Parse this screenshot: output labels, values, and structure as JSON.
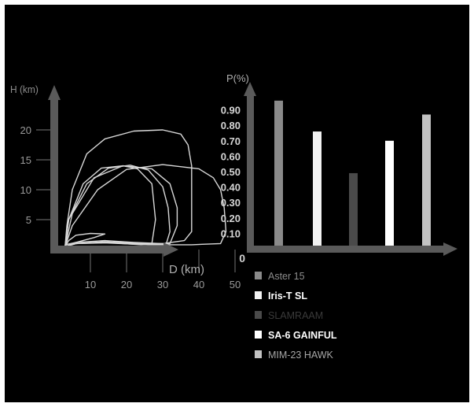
{
  "chart_data": [
    {
      "type": "line",
      "title": "",
      "ylabel": "H (km)",
      "xlabel": "D (km)",
      "x_ticks": [
        10,
        20,
        30,
        40,
        50
      ],
      "y_ticks": [
        5,
        10,
        15,
        20
      ],
      "xlim": [
        0,
        60
      ],
      "ylim": [
        0,
        25
      ],
      "series": [
        {
          "x": [
            3,
            3.5,
            5,
            9,
            14,
            22,
            30,
            35,
            37,
            38,
            38,
            36,
            30,
            22,
            14,
            6,
            3,
            3
          ],
          "y": [
            0.5,
            4,
            10,
            16,
            18.5,
            19.8,
            20,
            19.3,
            17.5,
            14,
            3,
            1.5,
            1,
            1.2,
            1.5,
            1.2,
            0.8,
            0.5
          ]
        },
        {
          "x": [
            3,
            4,
            8,
            13,
            19,
            23,
            27,
            28,
            27,
            22,
            14,
            6,
            3
          ],
          "y": [
            0.5,
            5,
            11,
            13.6,
            14,
            13.5,
            11,
            5,
            1,
            1,
            1.3,
            1,
            0.5
          ]
        },
        {
          "x": [
            3,
            4,
            9,
            15,
            21,
            26,
            30,
            31.5,
            32,
            31,
            24,
            14,
            6,
            3
          ],
          "y": [
            0.5,
            5,
            11,
            13.6,
            14.1,
            13.3,
            10.5,
            7,
            3,
            1,
            1,
            1.3,
            1,
            0.5
          ]
        },
        {
          "x": [
            3,
            5,
            11,
            19,
            27,
            32,
            34,
            34,
            32,
            24,
            14,
            6,
            3
          ],
          "y": [
            0.5,
            6,
            12,
            14,
            13.5,
            11,
            7,
            4,
            1,
            0.8,
            1.2,
            1,
            0.5
          ]
        },
        {
          "x": [
            3,
            5,
            12,
            20,
            30,
            40,
            44,
            46,
            47,
            47.5,
            46,
            38,
            26,
            14,
            6,
            3
          ],
          "y": [
            0.5,
            4,
            10,
            13.4,
            14.2,
            13.5,
            12,
            10,
            7,
            3,
            1,
            0.8,
            0.8,
            1.1,
            1,
            0.5
          ]
        },
        {
          "x": [
            3,
            4,
            6,
            10,
            14,
            11,
            6,
            3
          ],
          "y": [
            0.5,
            1.5,
            2.4,
            2.7,
            2.6,
            2,
            1.2,
            0.5
          ]
        }
      ]
    },
    {
      "type": "bar",
      "title": "",
      "ylabel": "P(%)",
      "y_ticks": [
        "0.10",
        "0.20",
        "0.30",
        "0.40",
        "0.50",
        "0.60",
        "0.70",
        "0.80",
        "0.90"
      ],
      "y_zero_label": "0",
      "ylim": [
        0,
        1
      ],
      "categories": [
        "Aster 15",
        "Iris-T SL",
        "SLAMRAAM",
        "SA-6 GAINFUL",
        "MIM-23 HAWK"
      ],
      "values": [
        0.96,
        0.76,
        0.49,
        0.7,
        0.87
      ],
      "colors": [
        "#8a8a8a",
        "#f2f2f2",
        "#4a4a4a",
        "#ffffff",
        "#c2c2c2"
      ],
      "legend": "bottom"
    }
  ]
}
